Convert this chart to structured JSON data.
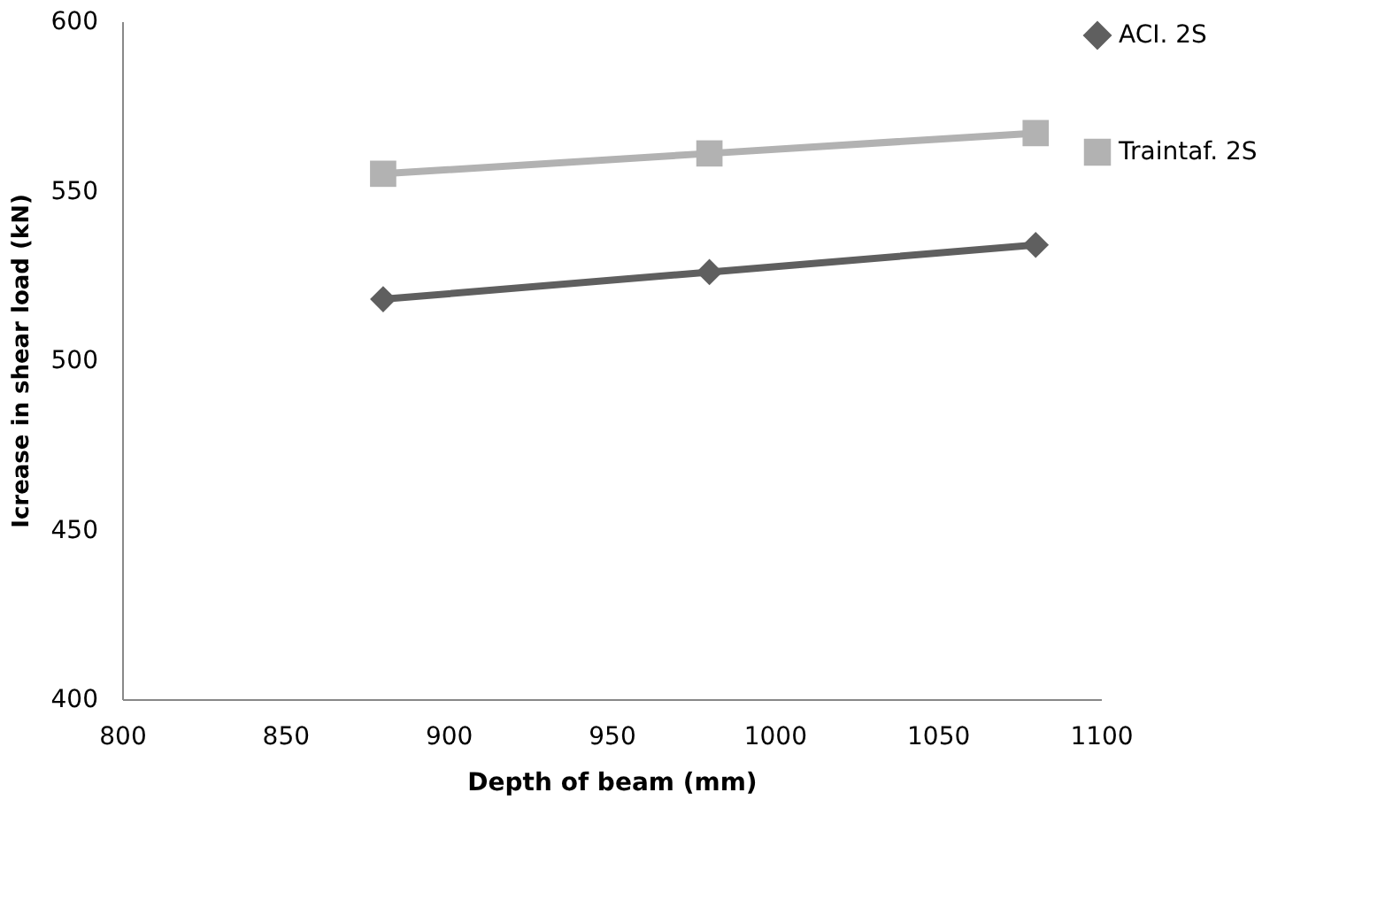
{
  "chart_data": {
    "type": "line",
    "xlabel": "Depth of beam (mm)",
    "ylabel": "Icrease in shear load (kN)",
    "x": [
      880,
      980,
      1080
    ],
    "series": [
      {
        "name": "ACI. 2S",
        "color": "#5f5f5f",
        "marker": "diamond",
        "values": [
          518,
          526,
          534
        ]
      },
      {
        "name": "Traintaf. 2S",
        "color": "#b2b2b2",
        "marker": "square",
        "values": [
          555,
          561,
          567
        ]
      }
    ],
    "xlim": [
      800,
      1100
    ],
    "xticks": [
      800,
      850,
      900,
      950,
      1000,
      1050,
      1100
    ],
    "ylim": [
      400,
      600
    ],
    "yticks": [
      400,
      450,
      500,
      550,
      600
    ],
    "grid": false,
    "legend": "right"
  }
}
